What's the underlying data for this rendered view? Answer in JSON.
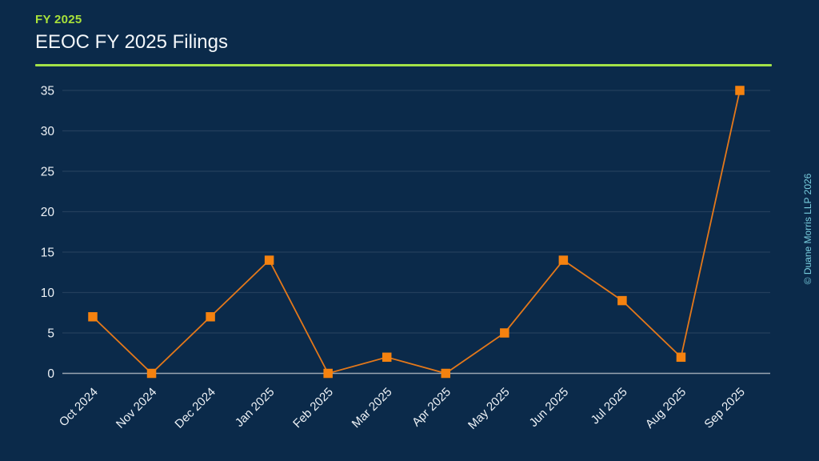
{
  "header": {
    "kicker": "FY 2025",
    "title": "EEOC FY 2025 Filings"
  },
  "watermark": {
    "text": "© Duane Morris LLP 2026"
  },
  "colors": {
    "background": "#0b2a4a",
    "accent_green": "#a9e23a",
    "rule_green": "#a3e248",
    "line_orange": "#e4781a",
    "marker_orange": "#f5820f",
    "tick_text": "#eef2f6",
    "gridline": "rgba(255,255,255,0.10)",
    "zero_line": "#9aa5b1",
    "watermark_cyan": "#79cfe0"
  },
  "chart_data": {
    "type": "line",
    "title": "EEOC FY 2025 Filings",
    "categories": [
      "Oct 2024",
      "Nov 2024",
      "Dec 2024",
      "Jan 2025",
      "Feb 2025",
      "Mar 2025",
      "Apr 2025",
      "May 2025",
      "Jun 2025",
      "Jul 2025",
      "Aug 2025",
      "Sep 2025"
    ],
    "values": [
      7,
      0,
      7,
      14,
      0,
      2,
      0,
      5,
      14,
      9,
      2,
      35
    ],
    "xlabel": "",
    "ylabel": "",
    "ylim": [
      0,
      35
    ],
    "yticks": [
      0,
      5,
      10,
      15,
      20,
      25,
      30,
      35
    ],
    "grid": "horizontal",
    "legend": "none",
    "marker": "square",
    "x_tick_rotation": -45
  }
}
